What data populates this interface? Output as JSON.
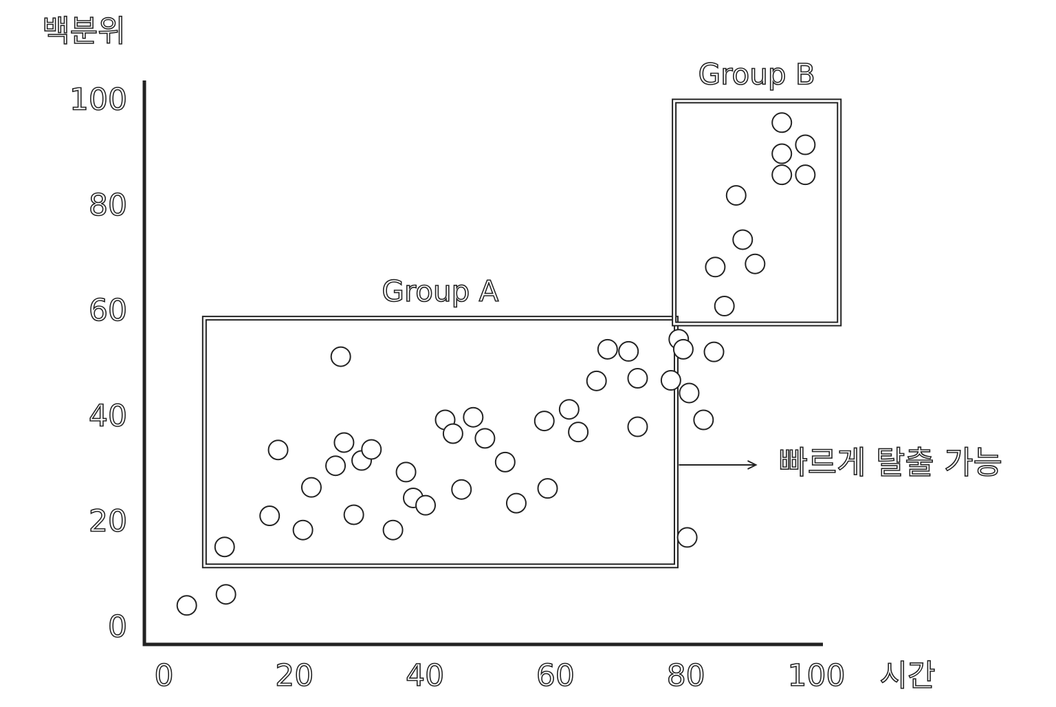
{
  "chart_data": {
    "type": "scatter",
    "x_label": "시간",
    "y_label": "백분위",
    "xlim": [
      -3,
      101
    ],
    "ylim": [
      -3,
      104
    ],
    "xticks": [
      0,
      20,
      40,
      60,
      80,
      100
    ],
    "yticks": [
      0,
      20,
      40,
      60,
      80,
      100
    ],
    "color": "#ffffff",
    "x": [
      3.5,
      9.5,
      9.3,
      17.5,
      16.2,
      21.3,
      22.6,
      27.1,
      26.3,
      27.6,
      29.1,
      30.3,
      31.8,
      35.1,
      37.1,
      38.2,
      40.1,
      43.1,
      44.3,
      45.6,
      47.4,
      49.2,
      52.3,
      54.0,
      58.3,
      58.8,
      62.1,
      63.5,
      66.3,
      68.0,
      71.2,
      72.6,
      72.6,
      77.7,
      78.9,
      79.6,
      80.5,
      82.7,
      80.2,
      84.3,
      85.9,
      84.5,
      88.7,
      90.6,
      87.7,
      94.7,
      98.3,
      94.7,
      98.3,
      94.7
    ],
    "values": [
      4.4,
      6.5,
      15.5,
      33.9,
      21.4,
      18.7,
      26.8,
      51.6,
      30.9,
      35.3,
      21.6,
      31.9,
      34.0,
      18.7,
      29.7,
      24.8,
      23.4,
      39.6,
      37.0,
      26.4,
      40.1,
      36.1,
      31.6,
      23.8,
      39.4,
      26.6,
      41.6,
      37.3,
      47.0,
      53.0,
      52.6,
      47.5,
      38.3,
      47.1,
      54.9,
      53.0,
      44.7,
      39.6,
      17.3,
      52.5,
      61.2,
      68.6,
      73.8,
      69.2,
      82.2,
      86.1,
      86.1,
      90.1,
      91.8,
      96.0
    ],
    "regions": [
      {
        "label": "Group A",
        "xlim": [
          6.2,
          78.5
        ],
        "ylim": [
          11.9,
          58.9
        ]
      },
      {
        "label": "Group B",
        "xlim": [
          78.2,
          103.5
        ],
        "ylim": [
          57.8,
          100.1
        ]
      }
    ],
    "annotation": "빠르게 탈출 가능"
  }
}
